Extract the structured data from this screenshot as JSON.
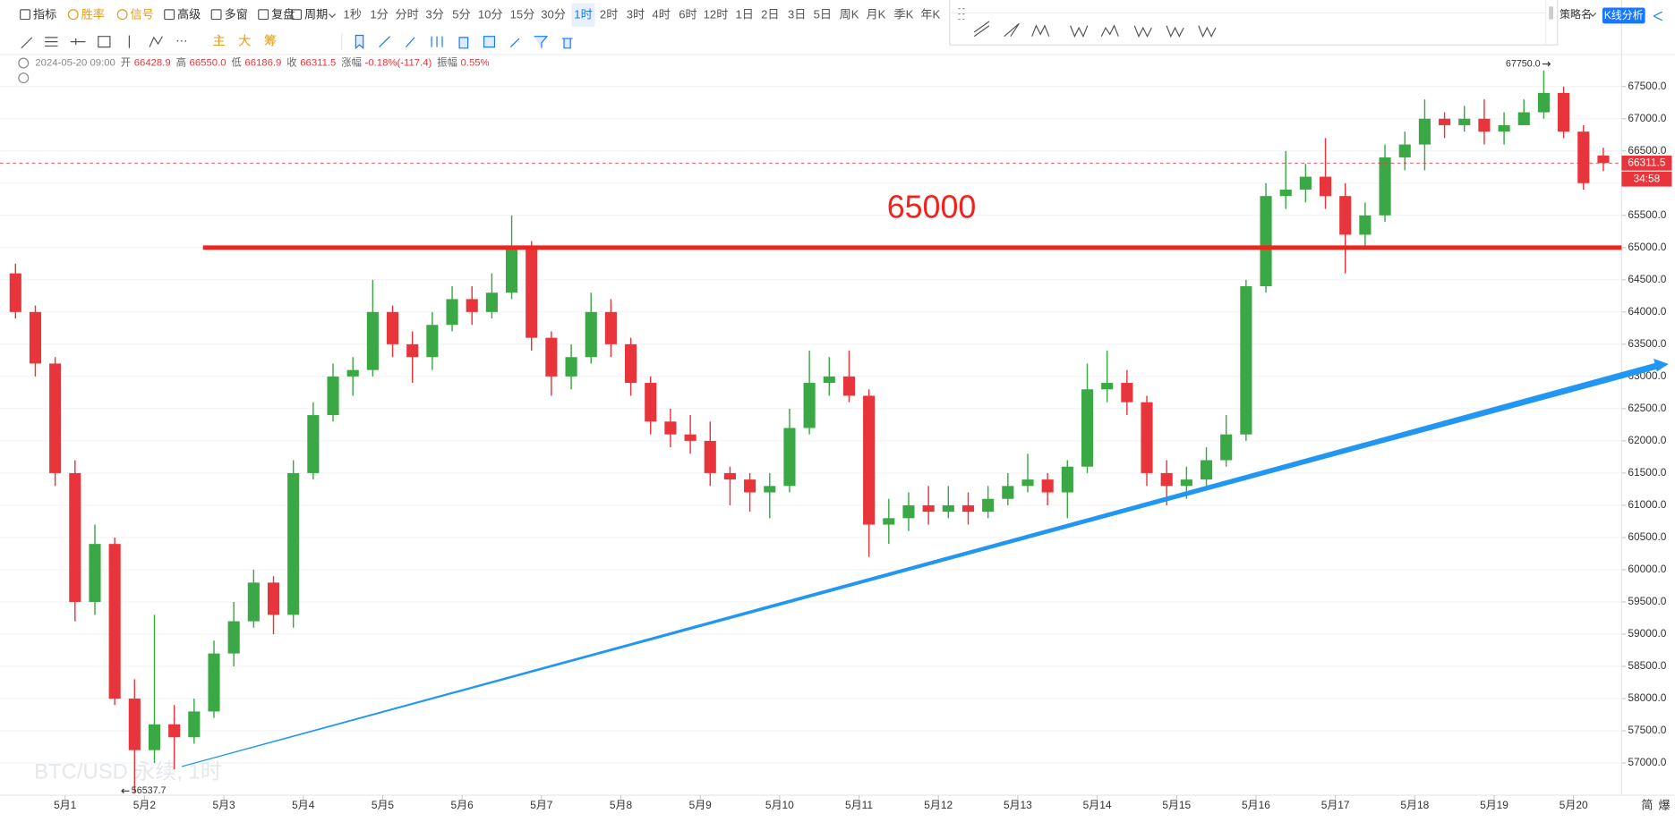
{
  "toolbar": {
    "left": [
      "指标",
      "胜率",
      "信号",
      "高级",
      "多窗",
      "复盘",
      "周期"
    ],
    "periods": [
      "1秒",
      "1分",
      "分时",
      "3分",
      "5分",
      "10分",
      "15分",
      "30分",
      "1时",
      "2时",
      "3时",
      "4时",
      "6时",
      "12时",
      "1日",
      "2日",
      "3日",
      "5日",
      "周K",
      "月K",
      "季K",
      "年K"
    ],
    "active_period": "1时",
    "tools": [
      "主",
      "大",
      "筹"
    ],
    "strategy": "策略名",
    "button": "K线分析"
  },
  "info": {
    "datetime": "2024-05-20 09:00",
    "items": [
      {
        "label": "开",
        "value": "66428.9"
      },
      {
        "label": "高",
        "value": "66550.0"
      },
      {
        "label": "低",
        "value": "66186.9"
      },
      {
        "label": "收",
        "value": "66311.5"
      },
      {
        "label": "涨幅",
        "value": "-0.18%(-117.4)"
      },
      {
        "label": "振幅",
        "value": "0.55%"
      }
    ]
  },
  "countdown": "34:58",
  "watermark": "BTC/USD 永续, 1时",
  "corner": [
    "简",
    "爆"
  ],
  "chart_data": {
    "type": "candlestick",
    "up_color": "#3aa845",
    "down_color": "#e8353b",
    "grid": true,
    "open": [
      64600,
      64000,
      63200,
      61500,
      59500,
      60400,
      58000,
      57200,
      57600,
      57400,
      57800,
      58700,
      59200,
      59800,
      59300,
      61500,
      62400,
      63000,
      63100,
      64000,
      63500,
      63300,
      63800,
      64200,
      64000,
      64300,
      65000,
      63600,
      63000,
      63300,
      64000,
      63500,
      62900,
      62300,
      62100,
      62000,
      61500,
      61400,
      61200,
      61300,
      62200,
      62900,
      63000,
      62700,
      60700,
      60800,
      61000,
      60900,
      61000,
      60900,
      61100,
      61300,
      61400,
      61200,
      61600,
      62800,
      62900,
      62600,
      61500,
      61300,
      61400,
      61700,
      62100,
      64400,
      65800,
      65900,
      66100,
      65800,
      65200,
      65500,
      66400,
      66600,
      67000,
      66900,
      67000,
      66800,
      66900,
      67100,
      67400,
      66800,
      66428.9
    ],
    "high": [
      64750,
      64100,
      63300,
      61700,
      60700,
      60500,
      58300,
      59300,
      57900,
      58000,
      58900,
      59500,
      60000,
      59900,
      61700,
      62600,
      63200,
      63300,
      64500,
      64100,
      63700,
      64000,
      64400,
      64400,
      64600,
      65500,
      65100,
      63700,
      63500,
      64300,
      64200,
      63600,
      63000,
      62500,
      62400,
      62300,
      61600,
      61500,
      61500,
      62500,
      63400,
      63300,
      63400,
      62800,
      61100,
      61200,
      61300,
      61300,
      61200,
      61300,
      61500,
      61800,
      61500,
      61700,
      63200,
      63400,
      63100,
      62700,
      61700,
      61600,
      61900,
      62400,
      64500,
      66000,
      66500,
      66300,
      66700,
      66000,
      65700,
      66600,
      66800,
      67300,
      67100,
      67200,
      67300,
      67100,
      67300,
      67750,
      67500,
      66900,
      66550
    ],
    "low": [
      63900,
      63000,
      61300,
      59200,
      59300,
      57900,
      56537.7,
      57000,
      56900,
      57300,
      57700,
      58500,
      59100,
      59000,
      59100,
      61400,
      62300,
      62700,
      63000,
      63300,
      62900,
      63100,
      63700,
      63800,
      63900,
      64200,
      63400,
      62700,
      62800,
      63200,
      63300,
      62700,
      62100,
      61900,
      61800,
      61300,
      61000,
      60900,
      60800,
      61200,
      62100,
      62700,
      62600,
      60200,
      60400,
      60600,
      60700,
      60800,
      60700,
      60800,
      61000,
      61200,
      61000,
      60800,
      61500,
      62600,
      62400,
      61300,
      61000,
      61100,
      61300,
      61600,
      62000,
      64300,
      65600,
      65700,
      65600,
      64600,
      65000,
      65400,
      66200,
      66200,
      66700,
      66800,
      66600,
      66600,
      66900,
      67000,
      66700,
      65900,
      66186.9
    ],
    "close": [
      64000,
      63200,
      61500,
      59500,
      60400,
      58000,
      57200,
      57600,
      57400,
      57800,
      58700,
      59200,
      59800,
      59300,
      61500,
      62400,
      63000,
      63100,
      64000,
      63500,
      63300,
      63800,
      64200,
      64000,
      64300,
      65000,
      63600,
      63000,
      63300,
      64000,
      63500,
      62900,
      62300,
      62100,
      62000,
      61500,
      61400,
      61200,
      61300,
      62200,
      62900,
      63000,
      62700,
      60700,
      60800,
      61000,
      60900,
      61000,
      60900,
      61100,
      61300,
      61400,
      61200,
      61600,
      62800,
      62900,
      62600,
      61500,
      61300,
      61400,
      61700,
      62100,
      64400,
      65800,
      65900,
      66100,
      65800,
      65200,
      65500,
      66400,
      66600,
      67000,
      66900,
      67000,
      66800,
      66900,
      67100,
      67400,
      66800,
      66000,
      66311.5
    ],
    "xlim": [
      -0.78,
      80.92
    ],
    "xticks": [
      {
        "value": 2.5,
        "label": "5月1"
      },
      {
        "value": 6.5,
        "label": "5月2"
      },
      {
        "value": 10.5,
        "label": "5月3"
      },
      {
        "value": 14.5,
        "label": "5月4"
      },
      {
        "value": 18.5,
        "label": "5月5"
      },
      {
        "value": 22.5,
        "label": "5月6"
      },
      {
        "value": 26.5,
        "label": "5月7"
      },
      {
        "value": 30.5,
        "label": "5月8"
      },
      {
        "value": 34.5,
        "label": "5月9"
      },
      {
        "value": 38.5,
        "label": "5月10"
      },
      {
        "value": 42.5,
        "label": "5月11"
      },
      {
        "value": 46.5,
        "label": "5月12"
      },
      {
        "value": 50.5,
        "label": "5月13"
      },
      {
        "value": 54.5,
        "label": "5月14"
      },
      {
        "value": 58.5,
        "label": "5月15"
      },
      {
        "value": 62.5,
        "label": "5月16"
      },
      {
        "value": 66.5,
        "label": "5月17"
      },
      {
        "value": 70.5,
        "label": "5月18"
      },
      {
        "value": 74.5,
        "label": "5月19"
      },
      {
        "value": 78.5,
        "label": "5月20"
      }
    ],
    "ylim": [
      56500,
      67980
    ],
    "yticks": [
      {
        "value": 57000,
        "label": "57000.0"
      },
      {
        "value": 57500,
        "label": "57500.0"
      },
      {
        "value": 58000,
        "label": "58000.0"
      },
      {
        "value": 58500,
        "label": "58500.0"
      },
      {
        "value": 59000,
        "label": "59000.0"
      },
      {
        "value": 59500,
        "label": "59500.0"
      },
      {
        "value": 60000,
        "label": "60000.0"
      },
      {
        "value": 60500,
        "label": "60500.0"
      },
      {
        "value": 61000,
        "label": "61000.0"
      },
      {
        "value": 61500,
        "label": "61500.0"
      },
      {
        "value": 62000,
        "label": "62000.0"
      },
      {
        "value": 62500,
        "label": "62500.0"
      },
      {
        "value": 63000,
        "label": "63000.0"
      },
      {
        "value": 63500,
        "label": "63500.0"
      },
      {
        "value": 64000,
        "label": "64000.0"
      },
      {
        "value": 64500,
        "label": "64500.0"
      },
      {
        "value": 65000,
        "label": "65000.0"
      },
      {
        "value": 65500,
        "label": "65500.0"
      },
      {
        "value": 66000,
        "label": "66000.0"
      },
      {
        "value": 66500,
        "label": "66500.0"
      },
      {
        "value": 67000,
        "label": "67000.0"
      },
      {
        "value": 67500,
        "label": "67500.0"
      }
    ],
    "high_marker": {
      "value": 67750,
      "label": "67750.0"
    },
    "low_marker": 56537.7,
    "annotations": [
      {
        "value": 65000,
        "color": "#f0231d"
      }
    ]
  }
}
